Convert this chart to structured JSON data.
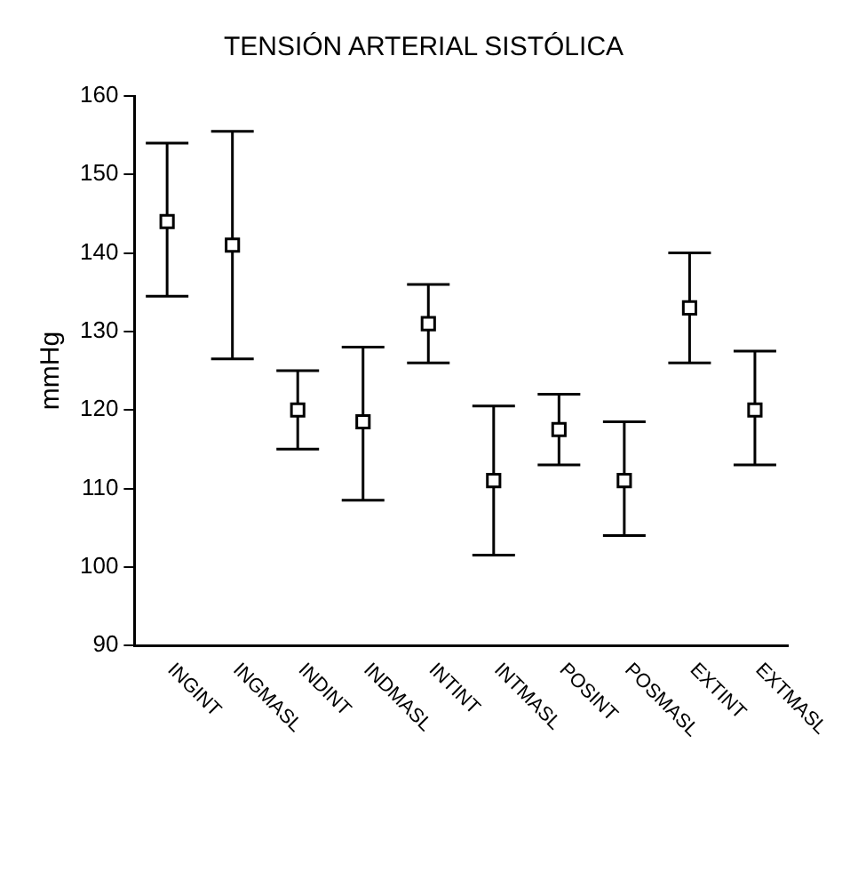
{
  "chart_data": {
    "type": "scatter",
    "title": "TENSIÓN ARTERIAL SISTÓLICA",
    "ylabel": "mmHg",
    "categories": [
      "INGINT",
      "INGMASL",
      "INDINT",
      "INDMASL",
      "INTINT",
      "INTMASL",
      "POSINT",
      "POSMASL",
      "EXTINT",
      "EXTMASL"
    ],
    "series": [
      {
        "color": "#000000",
        "values": [
          144,
          141,
          120,
          118.5,
          131,
          111,
          117.5,
          111,
          133,
          120
        ],
        "errors": [
          [
            134.5,
            154
          ],
          [
            126.5,
            155.5
          ],
          [
            115,
            125
          ],
          [
            108.5,
            128
          ],
          [
            126,
            136
          ],
          [
            101.5,
            120.5
          ],
          [
            113,
            122
          ],
          [
            104,
            118.5
          ],
          [
            126,
            140
          ],
          [
            113,
            127.5
          ]
        ]
      }
    ],
    "ylim": [
      90,
      160
    ],
    "yticks": [
      90,
      100,
      110,
      120,
      130,
      140,
      150,
      160
    ],
    "grid": false,
    "legend": false,
    "marker": "square"
  }
}
